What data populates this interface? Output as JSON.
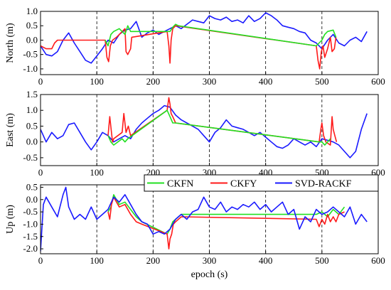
{
  "chart_data": [
    {
      "type": "line",
      "ylabel": "North (m)",
      "xlim": [
        0,
        600
      ],
      "ylim": [
        -1.2,
        1.0
      ],
      "xticks": [
        0,
        100,
        200,
        300,
        400,
        500,
        600
      ],
      "yticks": [
        -1.0,
        -0.5,
        0.0,
        0.5,
        1.0
      ],
      "ytick_labels": [
        "-1.0",
        "-0.5",
        "0.0",
        "0.5",
        "1.0"
      ],
      "grid": "vertical-dashed",
      "series": [
        {
          "name": "SVD-RACKF",
          "color": "#1a1aff",
          "x": [
            0,
            10,
            20,
            30,
            40,
            50,
            60,
            70,
            80,
            90,
            100,
            110,
            120,
            130,
            140,
            150,
            160,
            170,
            180,
            190,
            200,
            210,
            220,
            230,
            240,
            250,
            260,
            270,
            280,
            290,
            300,
            310,
            320,
            330,
            340,
            350,
            360,
            370,
            380,
            390,
            400,
            410,
            420,
            430,
            440,
            450,
            460,
            470,
            480,
            490,
            500,
            510,
            520,
            530,
            540,
            550,
            560,
            570,
            580
          ],
          "y": [
            -0.2,
            -0.5,
            -0.55,
            -0.4,
            0.0,
            0.25,
            -0.1,
            -0.4,
            -0.7,
            -0.8,
            -0.55,
            -0.3,
            0.0,
            -0.1,
            0.2,
            0.35,
            0.4,
            0.65,
            0.1,
            0.25,
            0.35,
            0.2,
            0.3,
            0.4,
            0.5,
            0.4,
            0.55,
            0.7,
            0.65,
            0.6,
            0.85,
            0.75,
            0.7,
            0.8,
            0.65,
            0.7,
            0.6,
            0.85,
            0.65,
            0.75,
            0.95,
            0.85,
            0.7,
            0.5,
            0.45,
            0.4,
            0.3,
            0.25,
            0.0,
            -0.1,
            -0.3,
            0.0,
            0.2,
            -0.1,
            -0.2,
            0.0,
            0.1,
            -0.05,
            0.3
          ]
        },
        {
          "name": "CKFY",
          "color": "#ff1a1a",
          "x": [
            0,
            10,
            20,
            25,
            30,
            115,
            118,
            121,
            124,
            128,
            135,
            150,
            152,
            155,
            160,
            162,
            225,
            228,
            230,
            232,
            235,
            240,
            490,
            493,
            496,
            499,
            502,
            505,
            510,
            515,
            518,
            522,
            525
          ],
          "y": [
            -0.2,
            -0.3,
            -0.3,
            -0.1,
            0.0,
            0.0,
            -0.6,
            -0.75,
            -0.2,
            0.0,
            0.1,
            0.4,
            -0.4,
            -0.5,
            -0.3,
            0.1,
            0.3,
            -0.2,
            -0.8,
            0.0,
            0.4,
            0.5,
            -0.2,
            -0.7,
            -1.0,
            -0.4,
            -0.2,
            -0.6,
            -0.3,
            0.1,
            -0.4,
            -0.3,
            0.1
          ]
        },
        {
          "name": "CKFN",
          "color": "#22e022",
          "x": [
            115,
            120,
            125,
            130,
            140,
            150,
            155,
            160,
            230,
            235,
            240,
            245,
            490,
            500,
            505,
            510,
            520,
            525
          ],
          "y": [
            0.0,
            -0.2,
            0.2,
            0.3,
            0.4,
            0.2,
            0.5,
            0.3,
            0.3,
            0.45,
            0.55,
            0.5,
            -0.2,
            0.0,
            0.2,
            0.3,
            0.35,
            0.1
          ]
        }
      ]
    },
    {
      "type": "line",
      "ylabel": "East (m)",
      "xlim": [
        0,
        600
      ],
      "ylim": [
        -0.75,
        1.5
      ],
      "xticks": [
        0,
        100,
        200,
        300,
        400,
        500,
        600
      ],
      "yticks": [
        -0.5,
        0.0,
        0.5,
        1.0,
        1.5
      ],
      "ytick_labels": [
        "-0.5",
        "0.0",
        "0.5",
        "1.0",
        "1.5"
      ],
      "grid": "vertical-dashed",
      "series": [
        {
          "name": "SVD-RACKF",
          "color": "#1a1aff",
          "x": [
            0,
            10,
            20,
            30,
            40,
            50,
            60,
            70,
            80,
            90,
            100,
            110,
            120,
            130,
            140,
            150,
            160,
            170,
            180,
            190,
            200,
            210,
            220,
            230,
            240,
            250,
            260,
            270,
            280,
            290,
            300,
            310,
            320,
            330,
            340,
            350,
            360,
            370,
            380,
            390,
            400,
            410,
            420,
            430,
            440,
            450,
            460,
            470,
            480,
            490,
            500,
            510,
            520,
            530,
            540,
            550,
            560,
            570,
            580
          ],
          "y": [
            0.4,
            0.0,
            0.3,
            0.1,
            0.2,
            0.55,
            0.6,
            0.3,
            0.0,
            -0.25,
            0.0,
            0.3,
            0.2,
            0.0,
            0.1,
            0.2,
            0.1,
            0.4,
            0.6,
            0.75,
            0.9,
            1.0,
            1.15,
            1.1,
            0.85,
            0.7,
            0.6,
            0.5,
            0.4,
            0.2,
            0.0,
            0.3,
            0.45,
            0.7,
            0.5,
            0.45,
            0.4,
            0.3,
            0.2,
            0.3,
            0.15,
            0.0,
            -0.15,
            -0.2,
            -0.1,
            0.1,
            0.0,
            -0.1,
            0.0,
            -0.15,
            0.1,
            0.05,
            0.0,
            -0.1,
            -0.3,
            -0.5,
            -0.3,
            0.4,
            0.9
          ]
        },
        {
          "name": "CKFY",
          "color": "#ff1a1a",
          "x": [
            120,
            123,
            126,
            128,
            130,
            145,
            148,
            152,
            156,
            160,
            225,
            228,
            230,
            232,
            235,
            240,
            495,
            498,
            500,
            503,
            507,
            515,
            518,
            520,
            523,
            526
          ],
          "y": [
            0.2,
            0.8,
            0.3,
            0.0,
            0.1,
            0.3,
            0.9,
            0.3,
            0.5,
            0.2,
            1.0,
            1.4,
            1.2,
            0.9,
            0.8,
            0.6,
            0.0,
            0.4,
            0.6,
            0.2,
            0.0,
            -0.1,
            0.8,
            0.4,
            0.2,
            0.0
          ]
        },
        {
          "name": "CKFN",
          "color": "#22e022",
          "x": [
            120,
            125,
            130,
            145,
            150,
            155,
            225,
            230,
            235,
            240,
            495,
            500,
            505,
            510,
            515
          ],
          "y": [
            0.2,
            0.0,
            -0.1,
            0.1,
            0.0,
            0.1,
            1.0,
            0.8,
            0.6,
            0.6,
            0.0,
            0.0,
            -0.1,
            0.0,
            0.1
          ]
        }
      ]
    },
    {
      "type": "line",
      "ylabel": "Up (m)",
      "xlabel": "epoch (s)",
      "xlim": [
        0,
        600
      ],
      "ylim": [
        -2.2,
        0.6
      ],
      "xticks": [
        0,
        100,
        200,
        300,
        400,
        500,
        600
      ],
      "yticks": [
        -2.0,
        -1.5,
        -1.0,
        -0.5,
        0.0,
        0.5
      ],
      "ytick_labels": [
        "-2.0",
        "-1.5",
        "-1.0",
        "-0.5",
        "0.0",
        "0.5"
      ],
      "grid": "vertical-dashed",
      "legend": "top-right",
      "series": [
        {
          "name": "CKFN",
          "color": "#22e022",
          "x": [
            120,
            125,
            130,
            140,
            150,
            160,
            170,
            180,
            225,
            230,
            235,
            240,
            245,
            250,
            490,
            500,
            510,
            520,
            530,
            540
          ],
          "y": [
            -0.5,
            -0.3,
            0.2,
            -0.2,
            -0.1,
            -0.4,
            -0.7,
            -0.9,
            -1.4,
            -1.2,
            -0.9,
            -0.8,
            -0.7,
            -0.6,
            -0.6,
            -0.5,
            -0.7,
            -0.4,
            -0.6,
            -0.3
          ]
        },
        {
          "name": "CKFY",
          "color": "#ff1a1a",
          "x": [
            120,
            123,
            126,
            130,
            140,
            150,
            160,
            170,
            180,
            225,
            228,
            230,
            233,
            236,
            240,
            245,
            250,
            490,
            495,
            500,
            505,
            510,
            515,
            520,
            525,
            530,
            540
          ],
          "y": [
            -0.5,
            -0.8,
            -0.2,
            0.1,
            -0.3,
            -0.2,
            -0.6,
            -0.9,
            -1.0,
            -1.4,
            -2.0,
            -1.6,
            -1.4,
            -1.0,
            -0.9,
            -0.8,
            -0.7,
            -0.8,
            -1.1,
            -0.8,
            -1.0,
            -0.6,
            -0.9,
            -0.7,
            -0.9,
            -0.6,
            -0.5
          ]
        },
        {
          "name": "SVD-RACKF",
          "color": "#1a1aff",
          "x": [
            0,
            5,
            10,
            20,
            30,
            40,
            45,
            50,
            60,
            70,
            80,
            90,
            100,
            110,
            120,
            130,
            140,
            150,
            160,
            170,
            180,
            190,
            200,
            210,
            220,
            230,
            240,
            250,
            260,
            270,
            280,
            290,
            300,
            310,
            320,
            330,
            340,
            350,
            360,
            370,
            380,
            390,
            400,
            410,
            420,
            430,
            440,
            450,
            460,
            470,
            480,
            490,
            500,
            510,
            520,
            530,
            540,
            550,
            560,
            570,
            580
          ],
          "y": [
            -2.1,
            -0.2,
            0.1,
            -0.3,
            -0.7,
            0.2,
            0.5,
            -0.3,
            -0.8,
            -0.6,
            -0.8,
            -0.3,
            -0.8,
            -0.6,
            -0.4,
            0.1,
            -0.1,
            0.2,
            -0.2,
            -0.6,
            -0.9,
            -1.0,
            -1.4,
            -1.3,
            -1.4,
            -1.2,
            -0.8,
            -0.6,
            -0.8,
            -0.5,
            -0.4,
            0.1,
            -0.3,
            -0.4,
            -0.1,
            -0.5,
            -0.3,
            -0.4,
            -0.2,
            -0.3,
            -0.1,
            -0.4,
            -0.2,
            -0.5,
            -0.3,
            -0.1,
            -0.6,
            -0.4,
            -1.2,
            -0.7,
            -0.9,
            -0.4,
            -0.6,
            -0.5,
            -0.3,
            -0.5,
            -0.7,
            -0.3,
            -1.0,
            -0.6,
            -0.9
          ]
        }
      ]
    }
  ]
}
